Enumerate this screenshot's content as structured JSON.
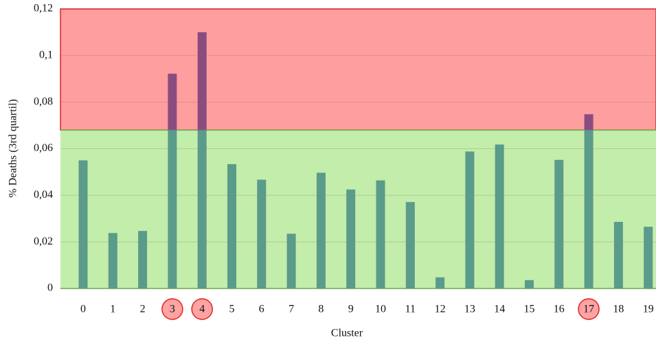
{
  "chart_data": {
    "type": "bar",
    "x_label": "Cluster",
    "y_label": "% Deaths (3rd quartil)",
    "categories": [
      "0",
      "1",
      "2",
      "3",
      "4",
      "5",
      "6",
      "7",
      "8",
      "9",
      "10",
      "11",
      "12",
      "13",
      "14",
      "15",
      "16",
      "17",
      "18",
      "19"
    ],
    "values": [
      0.055,
      0.0238,
      0.0247,
      0.0922,
      0.11,
      0.0534,
      0.0467,
      0.0235,
      0.0497,
      0.0425,
      0.0464,
      0.0371,
      0.0048,
      0.0588,
      0.0618,
      0.0036,
      0.0552,
      0.0748,
      0.0286,
      0.0265
    ],
    "color": "#5a9b8a",
    "above_color": "#8a4c80",
    "threshold": 0.068,
    "highlighted": [
      3,
      4,
      17
    ],
    "ylim": [
      0,
      0.12
    ],
    "yticks": [
      0,
      {
        "value": 0.02,
        "label": "0,02"
      },
      {
        "value": 0.04,
        "label": "0,04"
      },
      {
        "value": 0.06,
        "label": "0,06"
      },
      {
        "value": 0.08,
        "label": "0,08"
      },
      {
        "value": 0.1,
        "label": "0,1"
      },
      {
        "value": 0.12,
        "label": "0,12"
      }
    ],
    "grid": true
  }
}
